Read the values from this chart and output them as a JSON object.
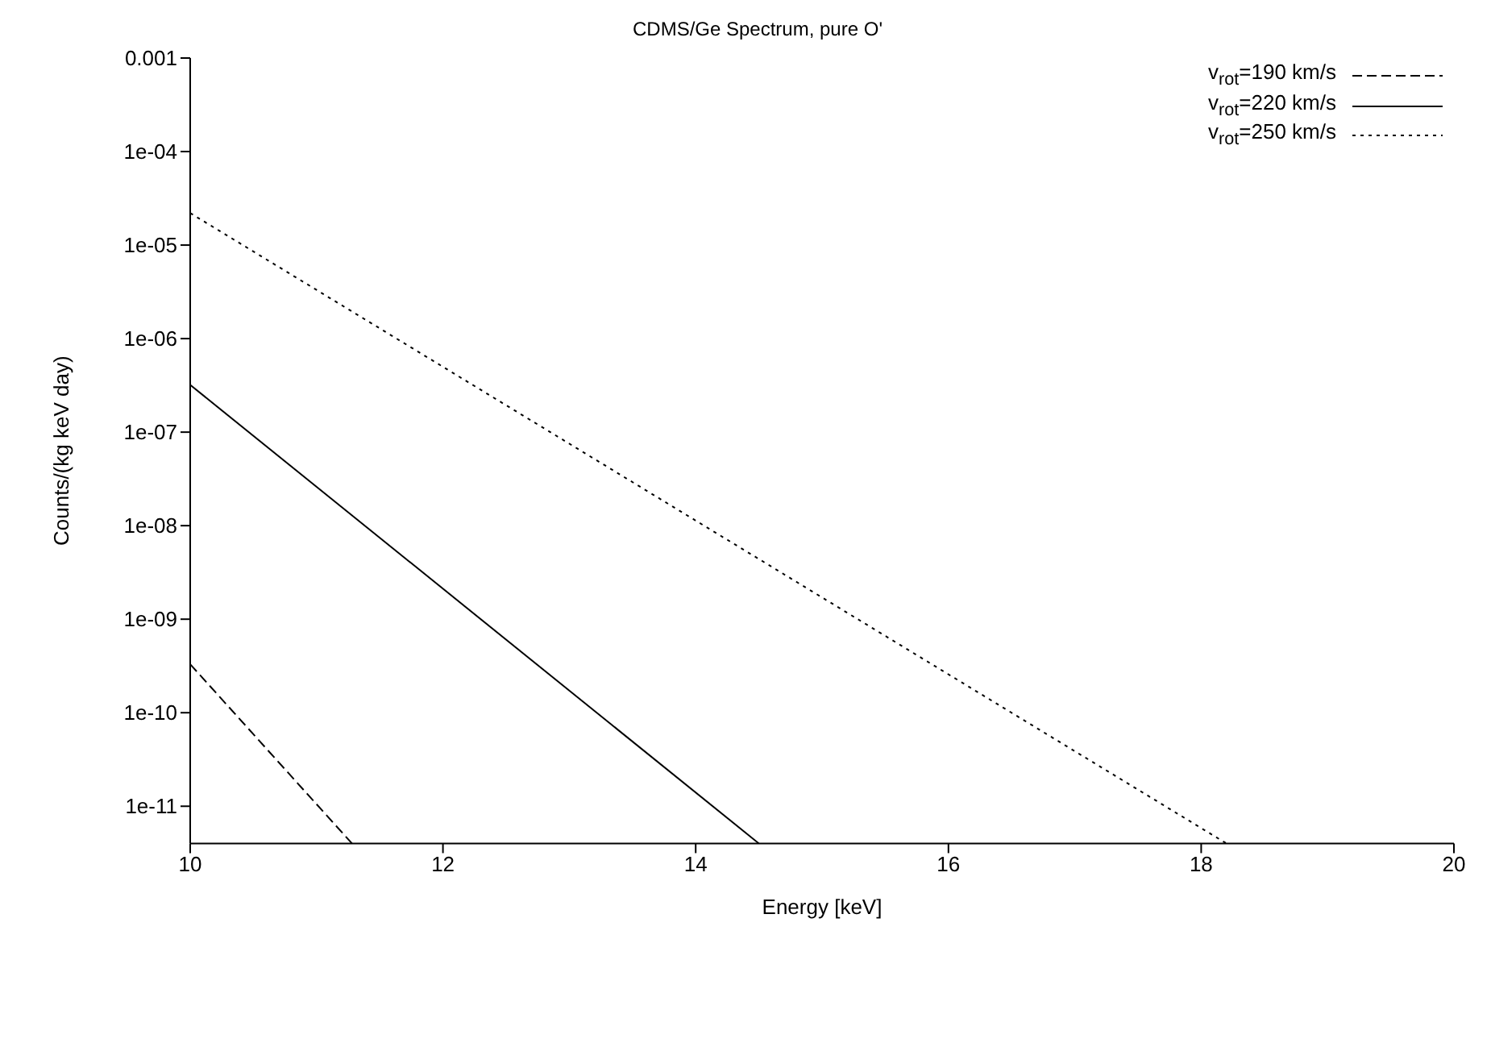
{
  "chart_data": {
    "type": "line",
    "title": "CDMS/Ge Spectrum, pure O'",
    "xlabel": "Energy [keV]",
    "ylabel": "Counts/(kg keV day)",
    "log": "y",
    "xlim": [
      10,
      20
    ],
    "xticks": [
      10,
      12,
      14,
      16,
      18,
      20
    ],
    "ylim": [
      4e-12,
      0.001
    ],
    "yticks": [
      0.001,
      {
        "value": 0.0001,
        "label": "1e-04"
      },
      {
        "value": 1e-05,
        "label": "1e-05"
      },
      {
        "value": 1e-06,
        "label": "1e-06"
      },
      {
        "value": 1e-07,
        "label": "1e-07"
      },
      {
        "value": 1e-08,
        "label": "1e-08"
      },
      {
        "value": 1e-09,
        "label": "1e-09"
      },
      {
        "value": 1e-10,
        "label": "1e-10"
      },
      {
        "value": 1e-11,
        "label": "1e-11"
      }
    ],
    "grid": false,
    "legend": "top right",
    "marker": "none",
    "series": [
      {
        "name": "v$_{rot}$=190 km/s",
        "color": "#000000",
        "line_style": "dashed",
        "x": [
          10,
          11.28
        ],
        "values": [
          3.3e-10,
          4e-12
        ]
      },
      {
        "name": "v$_{rot}$=220 km/s",
        "color": "#000000",
        "line_style": "solid",
        "x": [
          10,
          14.5
        ],
        "values": [
          3.2e-07,
          4e-12
        ]
      },
      {
        "name": "v$_{rot}$=250 km/s",
        "color": "#000000",
        "line_style": "dotted",
        "x": [
          10,
          18.2
        ],
        "values": [
          2.2e-05,
          4e-12
        ]
      }
    ]
  }
}
